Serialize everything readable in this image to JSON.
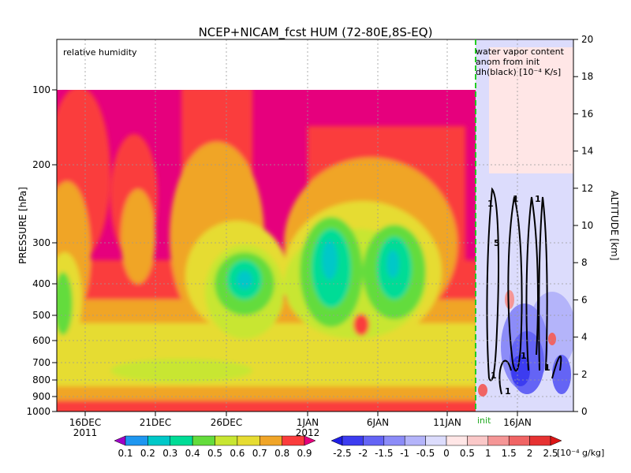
{
  "chart_data": {
    "type": "heatmap",
    "title": "NCEP+NICAM_fcst HUM (72-80E,8S-EQ)",
    "annotation_left": "relative humidity",
    "annotation_right": [
      "water vapor content",
      "anom from init",
      "dh(black) [10⁻⁴ K/s]"
    ],
    "init_label": "init",
    "ylabel_left": "PRESSURE [hPa]",
    "ylabel_right": "ALTITUDE [km]",
    "yticks_left": [
      "100",
      "200",
      "300",
      "400",
      "500",
      "600",
      "700",
      "800",
      "900",
      "1000"
    ],
    "yticks_right": [
      "0",
      "2",
      "4",
      "6",
      "8",
      "10",
      "12",
      "14",
      "16",
      "18",
      "20"
    ],
    "xticks": [
      "16DEC",
      "21DEC",
      "26DEC",
      "1JAN",
      "6JAN",
      "11JAN",
      "16JAN"
    ],
    "xyears": [
      "2011",
      "2012"
    ],
    "colorbar_rh": {
      "labels": [
        "0.1",
        "0.2",
        "0.3",
        "0.4",
        "0.5",
        "0.6",
        "0.7",
        "0.8",
        "0.9"
      ],
      "colors": [
        "#a000c8",
        "#1e96f0",
        "#00c8c8",
        "#00dc96",
        "#64dc3c",
        "#c8e632",
        "#e6dc32",
        "#f0a528",
        "#fa3c3c",
        "#e6007d"
      ]
    },
    "colorbar_anom": {
      "labels": [
        "-2.5",
        "-2",
        "-1.5",
        "-1",
        "-0.5",
        "0",
        "0.5",
        "1",
        "1.5",
        "2",
        "2.5"
      ],
      "unit": "[10⁻⁴ g/kg]",
      "colors": [
        "#1e1ee6",
        "#3c3cf0",
        "#6464f5",
        "#8c8cf8",
        "#b4b4fa",
        "#dcdcfc",
        "#ffe6e6",
        "#fac8c8",
        "#f59696",
        "#f06464",
        "#e63232",
        "#dc1414"
      ]
    },
    "contour_labels": [
      "1",
      "1",
      "1",
      "5",
      "1",
      "1",
      "1",
      "1"
    ]
  }
}
